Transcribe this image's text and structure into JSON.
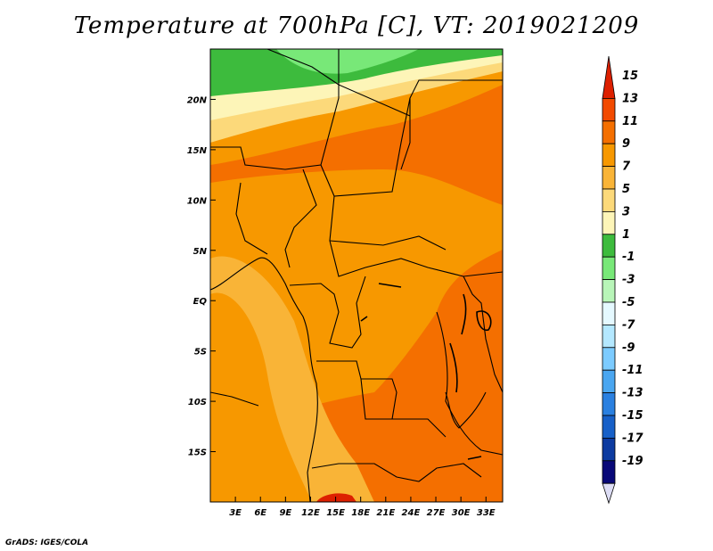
{
  "title": "Temperature at 700hPa [C], VT: 2019021209",
  "credit": "GrADS: IGES/COLA",
  "map": {
    "lon_range": [
      0,
      35
    ],
    "lat_range": [
      -20,
      25
    ],
    "lon_ticks": [
      {
        "lon": 3,
        "label": "3E"
      },
      {
        "lon": 6,
        "label": "6E"
      },
      {
        "lon": 9,
        "label": "9E"
      },
      {
        "lon": 12,
        "label": "12E"
      },
      {
        "lon": 15,
        "label": "15E"
      },
      {
        "lon": 18,
        "label": "18E"
      },
      {
        "lon": 21,
        "label": "21E"
      },
      {
        "lon": 24,
        "label": "24E"
      },
      {
        "lon": 27,
        "label": "27E"
      },
      {
        "lon": 30,
        "label": "30E"
      },
      {
        "lon": 33,
        "label": "33E"
      }
    ],
    "lat_ticks": [
      {
        "lat": 20,
        "label": "20N"
      },
      {
        "lat": 15,
        "label": "15N"
      },
      {
        "lat": 10,
        "label": "10N"
      },
      {
        "lat": 5,
        "label": "5N"
      },
      {
        "lat": 0,
        "label": "EQ"
      },
      {
        "lat": -5,
        "label": "5S"
      },
      {
        "lat": -10,
        "label": "10S"
      },
      {
        "lat": -15,
        "label": "15S"
      }
    ]
  },
  "colorbar": {
    "labels": [
      "15",
      "13",
      "11",
      "9",
      "7",
      "5",
      "3",
      "1",
      "-1",
      "-3",
      "-5",
      "-7",
      "-9",
      "-11",
      "-13",
      "-15",
      "-17",
      "-19"
    ],
    "colors": [
      "#dd2000",
      "#f24a00",
      "#f46f00",
      "#f79800",
      "#f9b437",
      "#fcd97a",
      "#fdf5b8",
      "#3dbb3d",
      "#78e878",
      "#b8f5b8",
      "#e5f9ff",
      "#b4e8ff",
      "#7ccbff",
      "#4aa6f0",
      "#2a80e0",
      "#1760c8",
      "#0c3aa0",
      "#080878",
      "#ddddf5"
    ]
  },
  "chart_data": {
    "type": "heatmap",
    "title": "Temperature at 700hPa [C], VT: 2019021209",
    "variable": "Temperature at 700hPa",
    "units": "C",
    "valid_time": "2019021209",
    "x_range": [
      0,
      35
    ],
    "y_range": [
      -20,
      25
    ],
    "contour_levels": [
      -19,
      -17,
      -15,
      -13,
      -11,
      -9,
      -7,
      -5,
      -3,
      -1,
      1,
      3,
      5,
      7,
      9,
      11,
      13,
      15
    ],
    "regions": [
      {
        "area": "far north (~22-25N)",
        "value_range": [
          1,
          3
        ]
      },
      {
        "area": "northern belt (~17-21N)",
        "value_range": [
          3,
          9
        ]
      },
      {
        "area": "central (~5S-15N)",
        "value_range": [
          9,
          11
        ]
      },
      {
        "area": "east and south (~0-20S, 25-35E)",
        "value_range": [
          11,
          13
        ]
      },
      {
        "area": "southern spots (~18-20S)",
        "value_range": [
          13,
          15
        ]
      }
    ]
  }
}
